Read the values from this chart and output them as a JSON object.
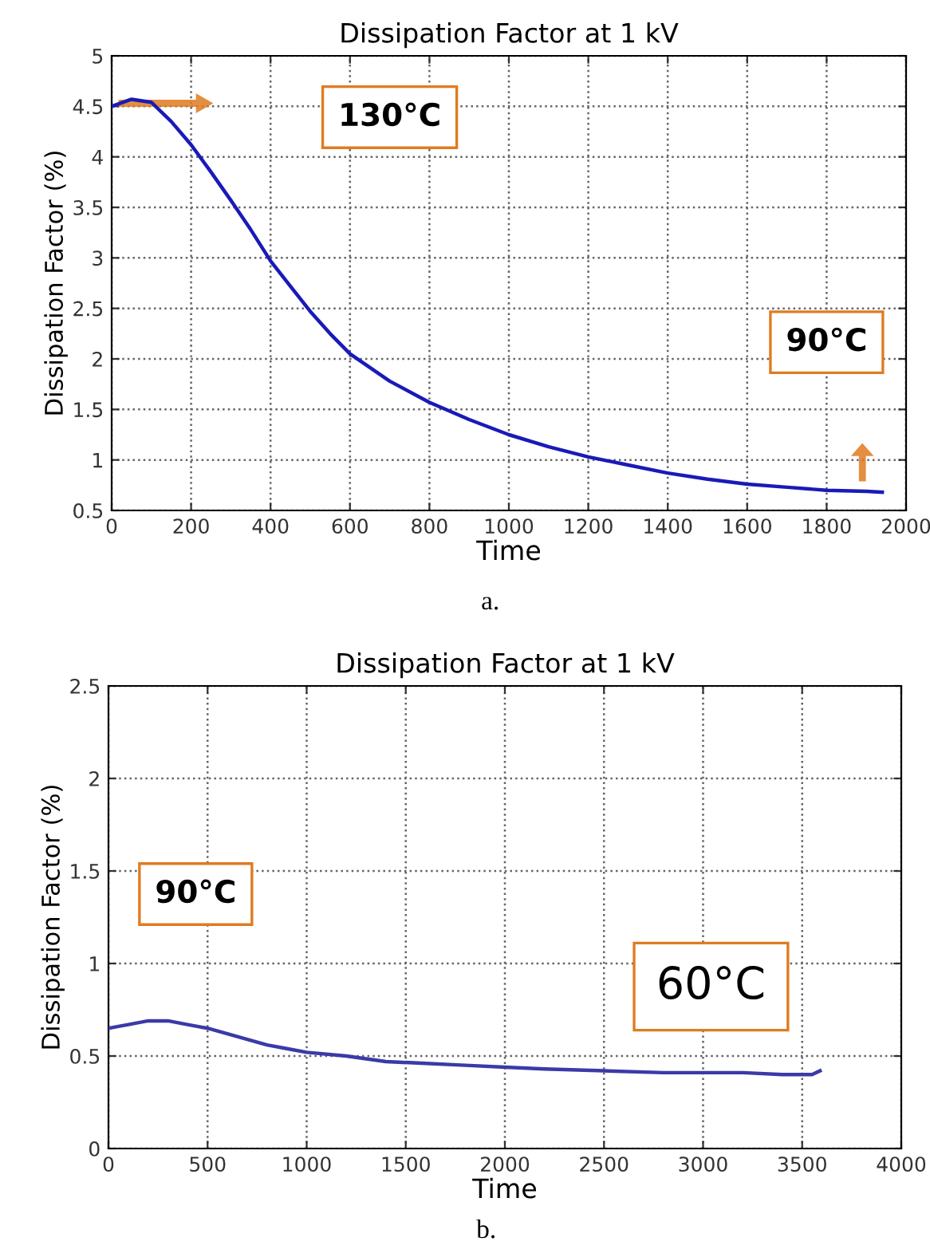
{
  "chart_data": [
    {
      "type": "line",
      "title": "Dissipation Factor at 1 kV",
      "xlabel": "Time",
      "ylabel": "Dissipation Factor (%)",
      "xlim": [
        0,
        2000
      ],
      "ylim": [
        0.5,
        5
      ],
      "xticks": [
        0,
        200,
        400,
        600,
        800,
        1000,
        1200,
        1400,
        1600,
        1800,
        2000
      ],
      "yticks": [
        0.5,
        1,
        1.5,
        2,
        2.5,
        3,
        3.5,
        4,
        4.5,
        5
      ],
      "grid": true,
      "marker": "none",
      "line_style": "solid",
      "legend": false,
      "series": [
        {
          "color": "#1a1ab8",
          "x": [
            0,
            50,
            100,
            150,
            200,
            250,
            300,
            350,
            400,
            450,
            500,
            550,
            600,
            700,
            800,
            900,
            1000,
            1100,
            1200,
            1300,
            1400,
            1500,
            1600,
            1700,
            1800,
            1900,
            1940
          ],
          "values": [
            4.5,
            4.57,
            4.54,
            4.35,
            4.12,
            3.85,
            3.57,
            3.28,
            2.97,
            2.72,
            2.47,
            2.25,
            2.05,
            1.78,
            1.57,
            1.4,
            1.25,
            1.13,
            1.03,
            0.95,
            0.87,
            0.81,
            0.76,
            0.73,
            0.7,
            0.69,
            0.68
          ]
        }
      ],
      "annotations": [
        "130°C",
        "90°C",
        "a."
      ]
    },
    {
      "type": "line",
      "title": "Dissipation Factor at 1 kV",
      "xlabel": "Time",
      "ylabel": "Dissipation Factor (%)",
      "xlim": [
        0,
        4000
      ],
      "ylim": [
        0,
        2.5
      ],
      "xticks": [
        0,
        500,
        1000,
        1500,
        2000,
        2500,
        3000,
        3500,
        4000
      ],
      "yticks": [
        0,
        0.5,
        1,
        1.5,
        2,
        2.5
      ],
      "grid": true,
      "marker": "none",
      "line_style": "solid",
      "legend": false,
      "series": [
        {
          "color": "#3a3aa8",
          "x": [
            0,
            50,
            100,
            200,
            300,
            400,
            500,
            600,
            700,
            800,
            900,
            1000,
            1200,
            1400,
            1600,
            1800,
            2000,
            2200,
            2500,
            2800,
            3000,
            3200,
            3400,
            3500,
            3550,
            3590
          ],
          "values": [
            0.65,
            0.66,
            0.67,
            0.69,
            0.69,
            0.67,
            0.65,
            0.62,
            0.59,
            0.56,
            0.54,
            0.52,
            0.5,
            0.47,
            0.46,
            0.45,
            0.44,
            0.43,
            0.42,
            0.41,
            0.41,
            0.41,
            0.4,
            0.4,
            0.4,
            0.42
          ]
        }
      ],
      "annotations": [
        "90°C",
        "60°C",
        "b."
      ]
    }
  ]
}
